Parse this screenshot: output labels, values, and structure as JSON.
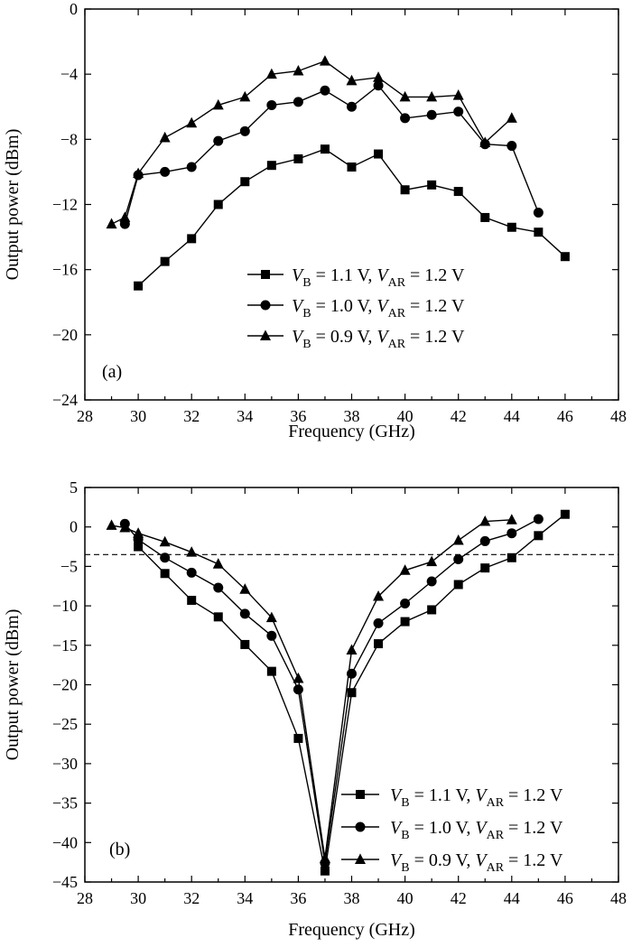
{
  "chart_data": [
    {
      "id": "a",
      "type": "line",
      "panel_label": "(a)",
      "xlabel": "Frequency (GHz)",
      "ylabel": "Output power (dBm)",
      "xlim": [
        28,
        48
      ],
      "ylim": [
        -24,
        0
      ],
      "xticks": [
        28,
        30,
        32,
        34,
        36,
        38,
        40,
        42,
        44,
        46,
        48
      ],
      "yticks": [
        0,
        -4,
        -8,
        -12,
        -16,
        -20,
        -24
      ],
      "grid": false,
      "legend_position": "lower-right",
      "series": [
        {
          "legend": {
            "a": "V",
            "a_sub": "B",
            "b": " = 1.1 V, ",
            "c": "V",
            "c_sub": "AR",
            "d": " = 1.2 V"
          },
          "marker": "square",
          "x": [
            30,
            31,
            32,
            33,
            34,
            35,
            36,
            37,
            38,
            39,
            40,
            41,
            42,
            43,
            44,
            45,
            46
          ],
          "y": [
            -17.0,
            -15.5,
            -14.1,
            -12.0,
            -10.6,
            -9.6,
            -9.2,
            -8.6,
            -9.7,
            -8.9,
            -11.1,
            -10.8,
            -11.2,
            -12.8,
            -13.4,
            -13.7,
            -15.2
          ]
        },
        {
          "legend": {
            "a": "V",
            "a_sub": "B",
            "b": " = 1.0 V, ",
            "c": "V",
            "c_sub": "AR",
            "d": " = 1.2 V"
          },
          "marker": "circle",
          "x": [
            29.5,
            30,
            31,
            32,
            33,
            34,
            35,
            36,
            37,
            38,
            39,
            40,
            41,
            42,
            43,
            44,
            45
          ],
          "y": [
            -13.2,
            -10.2,
            -10.0,
            -9.7,
            -8.1,
            -7.5,
            -5.9,
            -5.7,
            -5.0,
            -6.0,
            -4.7,
            -6.7,
            -6.5,
            -6.3,
            -8.3,
            -8.4,
            -12.5
          ]
        },
        {
          "legend": {
            "a": "V",
            "a_sub": "B",
            "b": " = 0.9 V, ",
            "c": "V",
            "c_sub": "AR",
            "d": " = 1.2 V"
          },
          "marker": "triangle",
          "x": [
            29,
            29.5,
            30,
            31,
            32,
            33,
            34,
            35,
            36,
            37,
            38,
            39,
            40,
            41,
            42,
            43,
            44
          ],
          "y": [
            -13.2,
            -12.8,
            -10.1,
            -7.9,
            -7.0,
            -5.9,
            -5.4,
            -4.0,
            -3.8,
            -3.2,
            -4.4,
            -4.2,
            -5.4,
            -5.4,
            -5.3,
            -8.2,
            -6.7
          ]
        }
      ]
    },
    {
      "id": "b",
      "type": "line",
      "panel_label": "(b)",
      "xlabel": "Frequency (GHz)",
      "ylabel": "Output power (dBm)",
      "xlim": [
        28,
        48
      ],
      "ylim": [
        -45,
        5
      ],
      "xticks": [
        28,
        30,
        32,
        34,
        36,
        38,
        40,
        42,
        44,
        46,
        48
      ],
      "yticks": [
        5,
        0,
        -5,
        -10,
        -15,
        -20,
        -25,
        -30,
        -35,
        -40,
        -45
      ],
      "grid": false,
      "legend_position": "lower-right",
      "reference_line_y": -3.5,
      "series": [
        {
          "legend": {
            "a": "V",
            "a_sub": "B",
            "b": " = 1.1 V, ",
            "c": "V",
            "c_sub": "AR",
            "d": " = 1.2 V"
          },
          "marker": "square",
          "x": [
            30,
            31,
            32,
            33,
            34,
            35,
            36,
            37,
            38,
            39,
            40,
            41,
            42,
            43,
            44,
            45,
            46
          ],
          "y": [
            -2.5,
            -5.9,
            -9.3,
            -11.4,
            -14.9,
            -18.3,
            -26.8,
            -43.6,
            -21.0,
            -14.8,
            -12.0,
            -10.5,
            -7.3,
            -5.2,
            -3.9,
            -1.1,
            1.6
          ]
        },
        {
          "legend": {
            "a": "V",
            "a_sub": "B",
            "b": " = 1.0 V, ",
            "c": "V",
            "c_sub": "AR",
            "d": " = 1.2 V"
          },
          "marker": "circle",
          "x": [
            29.5,
            30,
            31,
            32,
            33,
            34,
            35,
            36,
            37,
            38,
            39,
            40,
            41,
            42,
            43,
            44,
            45
          ],
          "y": [
            0.4,
            -1.6,
            -3.9,
            -5.8,
            -7.7,
            -11.0,
            -13.8,
            -20.6,
            -42.6,
            -18.6,
            -12.2,
            -9.7,
            -6.9,
            -4.1,
            -1.8,
            -0.8,
            1.0
          ]
        },
        {
          "legend": {
            "a": "V",
            "a_sub": "B",
            "b": " = 0.9 V, ",
            "c": "V",
            "c_sub": "AR",
            "d": " = 1.2 V"
          },
          "marker": "triangle",
          "x": [
            29,
            29.5,
            30,
            31,
            32,
            33,
            34,
            35,
            36,
            37,
            38,
            39,
            40,
            41,
            42,
            43,
            44
          ],
          "y": [
            0.2,
            -0.1,
            -0.8,
            -1.9,
            -3.2,
            -4.7,
            -7.9,
            -11.5,
            -19.2,
            -42.0,
            -15.6,
            -8.8,
            -5.5,
            -4.4,
            -1.7,
            0.7,
            0.9
          ]
        }
      ]
    }
  ]
}
